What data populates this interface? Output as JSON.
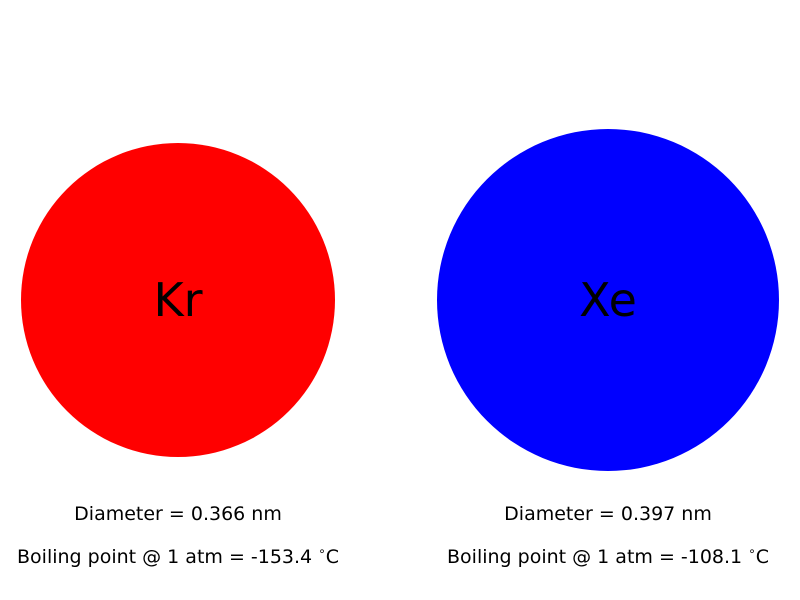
{
  "atoms": [
    {
      "symbol": "Kr",
      "color": "#ff0000",
      "diameter_text": "Diameter = 0.366 nm",
      "diameter_nm": 0.366,
      "boiling_prefix": "Boiling point @ 1 atm = -153.4 ",
      "degree_symbol": "∘",
      "boiling_unit": "C",
      "boiling_point_c": -153.4
    },
    {
      "symbol": "Xe",
      "color": "#0000ff",
      "diameter_text": "Diameter = 0.397 nm",
      "diameter_nm": 0.397,
      "boiling_prefix": "Boiling point @ 1 atm = -108.1 ",
      "degree_symbol": "∘",
      "boiling_unit": "C",
      "boiling_point_c": -108.1
    }
  ]
}
